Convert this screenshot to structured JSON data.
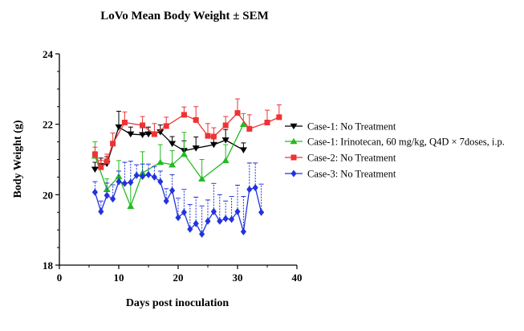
{
  "chart_data": {
    "type": "line",
    "title": "LoVo Mean Body Weight ± SEM",
    "xlabel": "Days post inoculation",
    "ylabel": "Body Weight (g)",
    "xlim": [
      0,
      40
    ],
    "ylim": [
      18,
      24
    ],
    "xticks": [
      0,
      10,
      20,
      30,
      40
    ],
    "yticks": [
      18,
      20,
      22,
      24
    ],
    "grid": false,
    "legend": "right",
    "series": [
      {
        "name": "Case-1: No Treatment",
        "color": "#000000",
        "marker": "triangle-down",
        "error_direction": "up",
        "error_style": "solid",
        "x": [
          6,
          7,
          8,
          10,
          12,
          14,
          15,
          17,
          19,
          21,
          23,
          26,
          28,
          31
        ],
        "y": [
          20.72,
          20.82,
          20.88,
          21.92,
          21.72,
          21.7,
          21.72,
          21.78,
          21.45,
          21.25,
          21.32,
          21.42,
          21.55,
          21.27
        ],
        "sem": [
          0.2,
          0.22,
          0.2,
          0.45,
          0.2,
          0.2,
          0.2,
          0.2,
          0.2,
          0.28,
          0.32,
          0.2,
          0.3,
          0.2
        ]
      },
      {
        "name": "Case-1: Irinotecan, 60 mg/kg, Q4D × 7doses, i.p.",
        "color": "#22bb22",
        "marker": "triangle-up",
        "error_direction": "up",
        "error_style": "solid",
        "x": [
          6,
          8,
          10,
          12,
          14,
          17,
          19,
          21,
          24,
          28,
          31
        ],
        "y": [
          21.1,
          20.15,
          20.52,
          19.67,
          20.62,
          20.92,
          20.85,
          21.15,
          20.45,
          20.97,
          22.0
        ],
        "sem": [
          0.4,
          0.3,
          0.45,
          0.7,
          0.6,
          0.5,
          0.4,
          0.62,
          0.55,
          0.45,
          0.3
        ]
      },
      {
        "name": "Case-2: No Treatment",
        "color": "#ee3333",
        "marker": "square",
        "error_direction": "up",
        "error_style": "solid",
        "x": [
          6,
          7,
          8,
          9,
          11,
          14,
          16,
          18,
          21,
          23,
          25,
          26,
          28,
          30,
          32,
          35,
          37
        ],
        "y": [
          21.15,
          20.78,
          20.95,
          21.45,
          22.05,
          21.97,
          21.72,
          21.95,
          22.27,
          22.12,
          21.67,
          21.65,
          21.97,
          22.32,
          21.87,
          22.05,
          22.2
        ],
        "sem": [
          0.2,
          0.2,
          0.2,
          0.3,
          0.3,
          0.25,
          0.3,
          0.25,
          0.22,
          0.38,
          0.35,
          0.25,
          0.25,
          0.4,
          0.4,
          0.35,
          0.35
        ]
      },
      {
        "name": "Case-3: No Treatment",
        "color": "#2233dd",
        "marker": "diamond",
        "error_direction": "up",
        "error_style": "dotted",
        "x": [
          6,
          7,
          8,
          9,
          10,
          11,
          12,
          13,
          14,
          15,
          16,
          17,
          18,
          19,
          20,
          21,
          22,
          23,
          24,
          25,
          26,
          27,
          28,
          29,
          30,
          31,
          32,
          33,
          34
        ],
        "y": [
          20.07,
          19.52,
          19.98,
          19.88,
          20.37,
          20.32,
          20.35,
          20.55,
          20.52,
          20.57,
          20.5,
          20.37,
          19.82,
          20.12,
          19.35,
          19.5,
          19.02,
          19.18,
          18.88,
          19.25,
          19.52,
          19.25,
          19.32,
          19.3,
          19.52,
          18.95,
          20.15,
          20.2,
          19.5
        ],
        "sem": [
          0.3,
          0.3,
          0.35,
          0.4,
          0.3,
          0.6,
          0.6,
          0.3,
          0.35,
          0.3,
          0.3,
          0.3,
          0.35,
          0.45,
          0.55,
          0.65,
          0.7,
          0.75,
          0.8,
          0.6,
          0.8,
          0.75,
          0.5,
          0.65,
          0.75,
          1.0,
          0.75,
          0.7,
          0.8
        ]
      }
    ]
  }
}
